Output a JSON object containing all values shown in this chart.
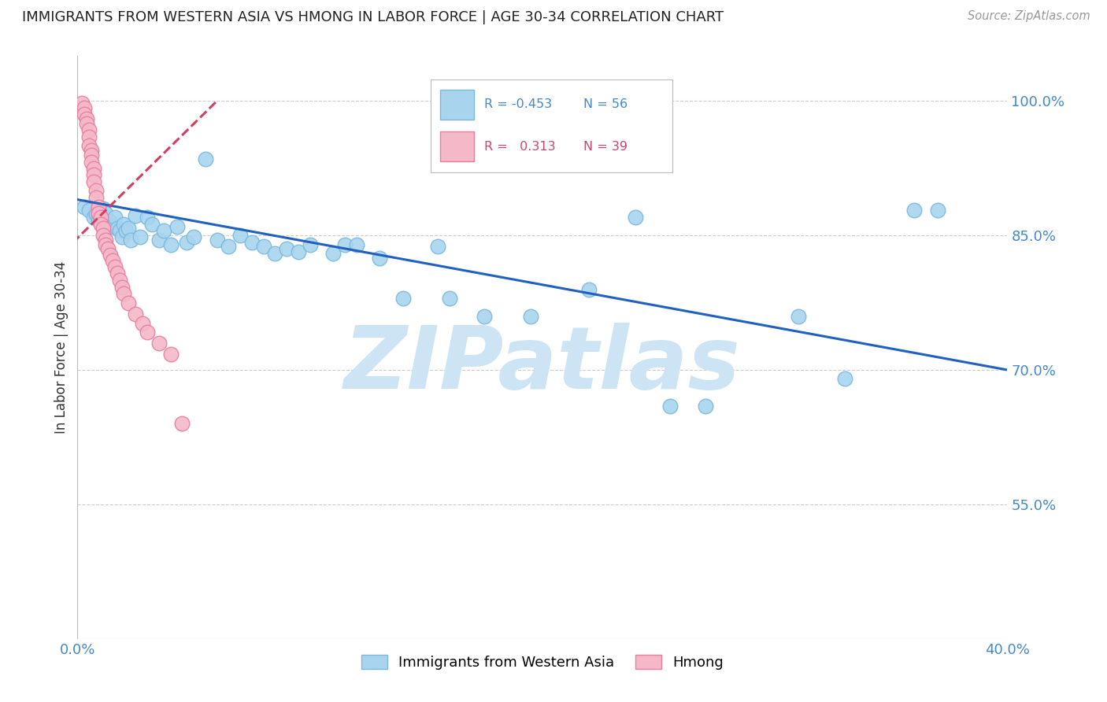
{
  "title": "IMMIGRANTS FROM WESTERN ASIA VS HMONG IN LABOR FORCE | AGE 30-34 CORRELATION CHART",
  "source": "Source: ZipAtlas.com",
  "ylabel": "In Labor Force | Age 30-34",
  "xlim": [
    0.0,
    0.4
  ],
  "ylim": [
    0.4,
    1.05
  ],
  "xticks": [
    0.0,
    0.05,
    0.1,
    0.15,
    0.2,
    0.25,
    0.3,
    0.35,
    0.4
  ],
  "ytick_right": [
    1.0,
    0.85,
    0.7,
    0.55
  ],
  "ytick_right_labels": [
    "100.0%",
    "85.0%",
    "70.0%",
    "55.0%"
  ],
  "blue_color": "#a8d4ee",
  "blue_edge": "#7ab8e0",
  "pink_color": "#f5b8c8",
  "pink_edge": "#e87da0",
  "trend_blue": "#2060c0",
  "trend_pink": "#d04060",
  "watermark": "ZIPatlas",
  "watermark_color": "#cce4f4",
  "legend_R_blue": "-0.453",
  "legend_N_blue": "56",
  "legend_R_pink": "0.313",
  "legend_N_pink": "39",
  "blue_scatter_x": [
    0.003,
    0.005,
    0.007,
    0.008,
    0.009,
    0.01,
    0.011,
    0.012,
    0.013,
    0.014,
    0.015,
    0.016,
    0.017,
    0.018,
    0.019,
    0.02,
    0.021,
    0.022,
    0.023,
    0.025,
    0.027,
    0.03,
    0.032,
    0.035,
    0.037,
    0.04,
    0.043,
    0.047,
    0.05,
    0.055,
    0.06,
    0.065,
    0.07,
    0.075,
    0.08,
    0.085,
    0.09,
    0.095,
    0.1,
    0.11,
    0.115,
    0.12,
    0.13,
    0.14,
    0.155,
    0.16,
    0.175,
    0.195,
    0.22,
    0.24,
    0.255,
    0.27,
    0.31,
    0.33,
    0.36,
    0.37
  ],
  "blue_scatter_y": [
    0.882,
    0.878,
    0.87,
    0.874,
    0.868,
    0.872,
    0.88,
    0.875,
    0.862,
    0.865,
    0.86,
    0.87,
    0.858,
    0.855,
    0.848,
    0.862,
    0.855,
    0.858,
    0.845,
    0.872,
    0.848,
    0.87,
    0.862,
    0.845,
    0.855,
    0.84,
    0.86,
    0.842,
    0.848,
    0.935,
    0.845,
    0.838,
    0.85,
    0.842,
    0.838,
    0.83,
    0.835,
    0.832,
    0.84,
    0.83,
    0.84,
    0.84,
    0.825,
    0.78,
    0.838,
    0.78,
    0.76,
    0.76,
    0.79,
    0.87,
    0.66,
    0.66,
    0.76,
    0.69,
    0.878,
    0.878
  ],
  "pink_scatter_x": [
    0.002,
    0.003,
    0.003,
    0.004,
    0.004,
    0.005,
    0.005,
    0.005,
    0.006,
    0.006,
    0.006,
    0.007,
    0.007,
    0.007,
    0.008,
    0.008,
    0.009,
    0.009,
    0.01,
    0.01,
    0.011,
    0.011,
    0.012,
    0.012,
    0.013,
    0.014,
    0.015,
    0.016,
    0.017,
    0.018,
    0.019,
    0.02,
    0.022,
    0.025,
    0.028,
    0.03,
    0.035,
    0.04,
    0.045
  ],
  "pink_scatter_y": [
    0.998,
    0.992,
    0.985,
    0.98,
    0.975,
    0.968,
    0.96,
    0.95,
    0.945,
    0.94,
    0.932,
    0.925,
    0.918,
    0.91,
    0.9,
    0.892,
    0.882,
    0.875,
    0.87,
    0.862,
    0.858,
    0.85,
    0.845,
    0.84,
    0.835,
    0.828,
    0.822,
    0.815,
    0.808,
    0.8,
    0.792,
    0.785,
    0.775,
    0.762,
    0.752,
    0.742,
    0.73,
    0.718,
    0.64
  ],
  "blue_trendline_x": [
    0.0,
    0.4
  ],
  "blue_trendline_y": [
    0.89,
    0.7
  ],
  "pink_trendline_x": [
    -0.002,
    0.06
  ],
  "pink_trendline_y": [
    0.842,
    1.0
  ]
}
